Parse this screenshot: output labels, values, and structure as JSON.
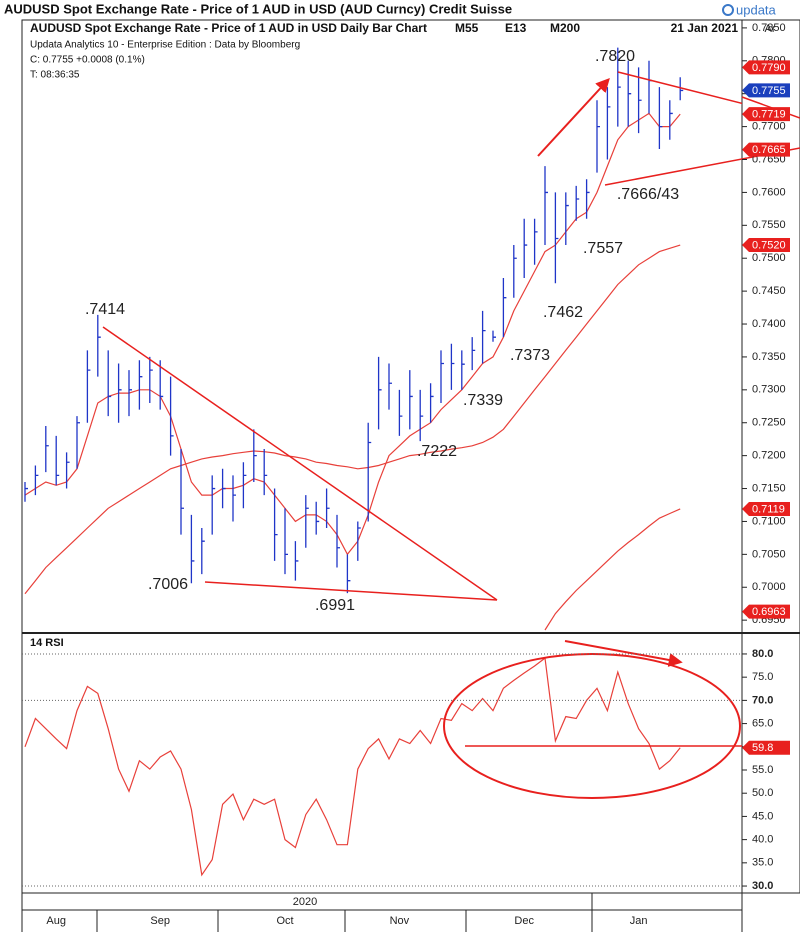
{
  "chart_data": [
    {
      "type": "ohlc",
      "title": "AUDUSD Spot Exchange Rate - Price of 1 AUD in USD (AUD Curncy)  Credit Suisse",
      "logo": "updata",
      "subtitle": "AUDUSD Spot Exchange Rate - Price of 1 AUD in USD Daily Bar Chart",
      "date": "21 Jan 2021",
      "info": [
        "Updata Analytics 10 - Enterprise Edition : Data by Bloomberg",
        "C: 0.7755  +0.0008 (0.1%)",
        "T: 08:36:35"
      ],
      "axis_label": "Ar",
      "year_label": "2020",
      "color": "#1f35c8",
      "categories": [
        null,
        null,
        null,
        "Aug",
        null,
        null,
        null,
        null,
        null,
        null,
        null,
        null,
        null,
        "Sep",
        null,
        null,
        null,
        null,
        null,
        null,
        null,
        null,
        null,
        null,
        null,
        "Oct",
        null,
        null,
        null,
        null,
        null,
        null,
        null,
        null,
        null,
        null,
        "Nov",
        null,
        null,
        null,
        null,
        null,
        null,
        null,
        null,
        null,
        null,
        null,
        "Dec",
        null,
        null,
        null,
        null,
        null,
        null,
        null,
        null,
        null,
        null,
        "Jan",
        null,
        null,
        null,
        null
      ],
      "high": [
        0.716,
        0.7185,
        0.7245,
        0.723,
        0.7205,
        0.726,
        0.736,
        0.7414,
        0.736,
        0.734,
        0.733,
        0.7345,
        0.735,
        0.7345,
        0.732,
        0.721,
        0.711,
        0.709,
        0.717,
        0.718,
        0.717,
        0.719,
        0.724,
        0.721,
        0.715,
        0.712,
        0.707,
        0.714,
        0.713,
        0.715,
        0.711,
        0.705,
        0.71,
        0.725,
        0.735,
        0.734,
        0.73,
        0.733,
        0.73,
        0.731,
        0.736,
        0.737,
        0.736,
        0.738,
        0.742,
        0.739,
        0.747,
        0.752,
        0.756,
        0.756,
        0.764,
        0.76,
        0.76,
        0.761,
        0.762,
        0.774,
        0.776,
        0.782,
        0.78,
        0.779,
        0.78,
        0.776,
        0.774,
        0.7775
      ],
      "low": [
        0.713,
        0.714,
        0.7175,
        0.7155,
        0.715,
        0.718,
        0.725,
        0.732,
        0.726,
        0.725,
        0.726,
        0.727,
        0.728,
        0.727,
        0.72,
        0.708,
        0.7006,
        0.702,
        0.708,
        0.712,
        0.71,
        0.712,
        0.716,
        0.714,
        0.704,
        0.702,
        0.701,
        0.706,
        0.708,
        0.709,
        0.703,
        0.6991,
        0.704,
        0.71,
        0.724,
        0.727,
        0.723,
        0.724,
        0.7222,
        0.725,
        0.728,
        0.73,
        0.73,
        0.733,
        0.734,
        0.7373,
        0.738,
        0.744,
        0.747,
        0.749,
        0.752,
        0.7462,
        0.752,
        0.7557,
        0.756,
        0.763,
        0.765,
        0.77,
        0.77,
        0.769,
        0.772,
        0.7666,
        0.768,
        0.774
      ],
      "close": [
        0.715,
        0.717,
        0.7215,
        0.717,
        0.719,
        0.725,
        0.733,
        0.738,
        0.729,
        0.73,
        0.73,
        0.732,
        0.733,
        0.729,
        0.723,
        0.712,
        0.704,
        0.707,
        0.715,
        0.715,
        0.714,
        0.717,
        0.72,
        0.717,
        0.708,
        0.705,
        0.704,
        0.712,
        0.71,
        0.712,
        0.706,
        0.701,
        0.709,
        0.722,
        0.73,
        0.731,
        0.726,
        0.729,
        0.726,
        0.729,
        0.734,
        0.734,
        0.7339,
        0.736,
        0.739,
        0.738,
        0.744,
        0.75,
        0.752,
        0.754,
        0.76,
        0.753,
        0.758,
        0.759,
        0.76,
        0.77,
        0.773,
        0.776,
        0.775,
        0.774,
        0.777,
        0.77,
        0.772,
        0.7755
      ],
      "series": [
        {
          "name": "M55",
          "color": "#e8403a",
          "values": [
            0.699,
            0.701,
            0.703,
            0.7045,
            0.706,
            0.7075,
            0.709,
            0.7105,
            0.712,
            0.713,
            0.714,
            0.715,
            0.716,
            0.717,
            0.718,
            0.7185,
            0.719,
            0.7195,
            0.7198,
            0.72,
            0.7203,
            0.7205,
            0.7207,
            0.7206,
            0.7204,
            0.72,
            0.7198,
            0.7195,
            0.719,
            0.7188,
            0.7185,
            0.7183,
            0.718,
            0.7182,
            0.7185,
            0.719,
            0.7195,
            0.72,
            0.7202,
            0.7205,
            0.7207,
            0.721,
            0.7212,
            0.7215,
            0.722,
            0.7228,
            0.724,
            0.726,
            0.728,
            0.73,
            0.732,
            0.734,
            0.736,
            0.738,
            0.74,
            0.742,
            0.744,
            0.746,
            0.7475,
            0.749,
            0.75,
            0.751,
            0.7515,
            0.752
          ]
        },
        {
          "name": "E13",
          "color": "#e8403a",
          "values": [
            0.714,
            0.715,
            0.716,
            0.7155,
            0.716,
            0.718,
            0.723,
            0.728,
            0.729,
            0.7295,
            0.7295,
            0.73,
            0.73,
            0.729,
            0.726,
            0.721,
            0.716,
            0.714,
            0.714,
            0.715,
            0.715,
            0.7155,
            0.7165,
            0.716,
            0.714,
            0.712,
            0.71,
            0.711,
            0.711,
            0.71,
            0.708,
            0.705,
            0.707,
            0.711,
            0.716,
            0.72,
            0.7215,
            0.723,
            0.724,
            0.725,
            0.727,
            0.7285,
            0.73,
            0.732,
            0.734,
            0.735,
            0.738,
            0.742,
            0.745,
            0.748,
            0.751,
            0.752,
            0.754,
            0.756,
            0.757,
            0.76,
            0.764,
            0.768,
            0.77,
            0.771,
            0.772,
            0.77,
            0.77,
            0.7719
          ]
        },
        {
          "name": "M200",
          "color": "#e8403a",
          "values": [
            null,
            null,
            null,
            null,
            null,
            null,
            null,
            null,
            null,
            null,
            null,
            null,
            null,
            null,
            null,
            null,
            null,
            null,
            null,
            null,
            null,
            null,
            null,
            null,
            null,
            null,
            null,
            null,
            null,
            null,
            null,
            null,
            null,
            null,
            null,
            null,
            null,
            null,
            null,
            null,
            null,
            null,
            null,
            null,
            null,
            null,
            null,
            null,
            null,
            null,
            0.6935,
            0.696,
            0.6978,
            0.6995,
            0.701,
            0.7025,
            0.704,
            0.7055,
            0.7068,
            0.708,
            0.7093,
            0.7105,
            0.7112,
            0.7119
          ]
        }
      ],
      "ylim": [
        0.6932,
        0.7862
      ],
      "yticks": [
        {
          "value": 0.695,
          "label": "0.6950"
        },
        {
          "value": 0.7,
          "label": "0.7000"
        },
        {
          "value": 0.705,
          "label": "0.7050"
        },
        {
          "value": 0.71,
          "label": "0.7100"
        },
        {
          "value": 0.715,
          "label": "0.7150"
        },
        {
          "value": 0.72,
          "label": "0.7200"
        },
        {
          "value": 0.725,
          "label": "0.7250"
        },
        {
          "value": 0.73,
          "label": "0.7300"
        },
        {
          "value": 0.735,
          "label": "0.7350"
        },
        {
          "value": 0.74,
          "label": "0.7400"
        },
        {
          "value": 0.745,
          "label": "0.7450"
        },
        {
          "value": 0.75,
          "label": "0.7500"
        },
        {
          "value": 0.755,
          "label": "0.7550"
        },
        {
          "value": 0.76,
          "label": "0.7600"
        },
        {
          "value": 0.765,
          "label": "0.7650"
        },
        {
          "value": 0.77,
          "label": "0.7700"
        },
        {
          "value": 0.775,
          "label": "0.7750"
        },
        {
          "value": 0.78,
          "label": "0.7800"
        },
        {
          "value": 0.785,
          "label": "0.7850"
        }
      ],
      "axis_markers": [
        {
          "value": 0.779,
          "label": "0.7790",
          "color": "#e8201e"
        },
        {
          "value": 0.7755,
          "label": "0.7755",
          "color": "#1a3fbd"
        },
        {
          "value": 0.7719,
          "label": "0.7719",
          "color": "#e8201e"
        },
        {
          "value": 0.7665,
          "label": "0.7665",
          "color": "#e8201e"
        },
        {
          "value": 0.752,
          "label": "0.7520",
          "color": "#e8201e"
        },
        {
          "value": 0.7119,
          "label": "0.7119",
          "color": "#e8201e"
        },
        {
          "value": 0.6963,
          "label": "0.6963",
          "color": "#e8201e"
        }
      ],
      "annotations": [
        ".7414",
        ".7006",
        ".6991",
        ".7222",
        ".7339",
        ".7373",
        ".7462",
        ".7557",
        ".7666/43",
        ".7820"
      ]
    },
    {
      "type": "line",
      "title": "14 RSI",
      "color": "#e8403a",
      "values": [
        60.0,
        66.1,
        63.9,
        61.7,
        59.6,
        67.8,
        73.0,
        71.5,
        63.9,
        55.2,
        50.4,
        57.0,
        55.2,
        57.8,
        59.1,
        55.2,
        46.5,
        32.4,
        35.7,
        47.6,
        49.8,
        44.3,
        48.7,
        47.6,
        48.7,
        40.0,
        38.3,
        45.4,
        48.7,
        44.3,
        38.9,
        38.9,
        55.2,
        59.6,
        61.7,
        57.4,
        61.7,
        60.7,
        63.5,
        60.7,
        66.1,
        65.7,
        69.3,
        67.8,
        70.4,
        67.8,
        72.6,
        74.3,
        75.9,
        77.4,
        79.1,
        61.3,
        66.5,
        66.1,
        70.0,
        72.6,
        67.8,
        76.1,
        69.3,
        63.9,
        60.7,
        55.2,
        57.0,
        59.8
      ],
      "ylim": [
        28.5,
        84.3
      ],
      "yticks": [
        {
          "value": 30,
          "label": "30.0"
        },
        {
          "value": 35,
          "label": "35.0"
        },
        {
          "value": 40,
          "label": "40.0"
        },
        {
          "value": 45,
          "label": "45.0"
        },
        {
          "value": 50,
          "label": "50.0"
        },
        {
          "value": 55,
          "label": "55.0"
        },
        {
          "value": 60,
          "label": "60.0"
        },
        {
          "value": 65,
          "label": "65.0"
        },
        {
          "value": 70,
          "label": "70.0"
        },
        {
          "value": 75,
          "label": "75.0"
        },
        {
          "value": 80,
          "label": "80.0"
        }
      ],
      "levels": [
        30,
        70,
        80
      ]
    }
  ]
}
